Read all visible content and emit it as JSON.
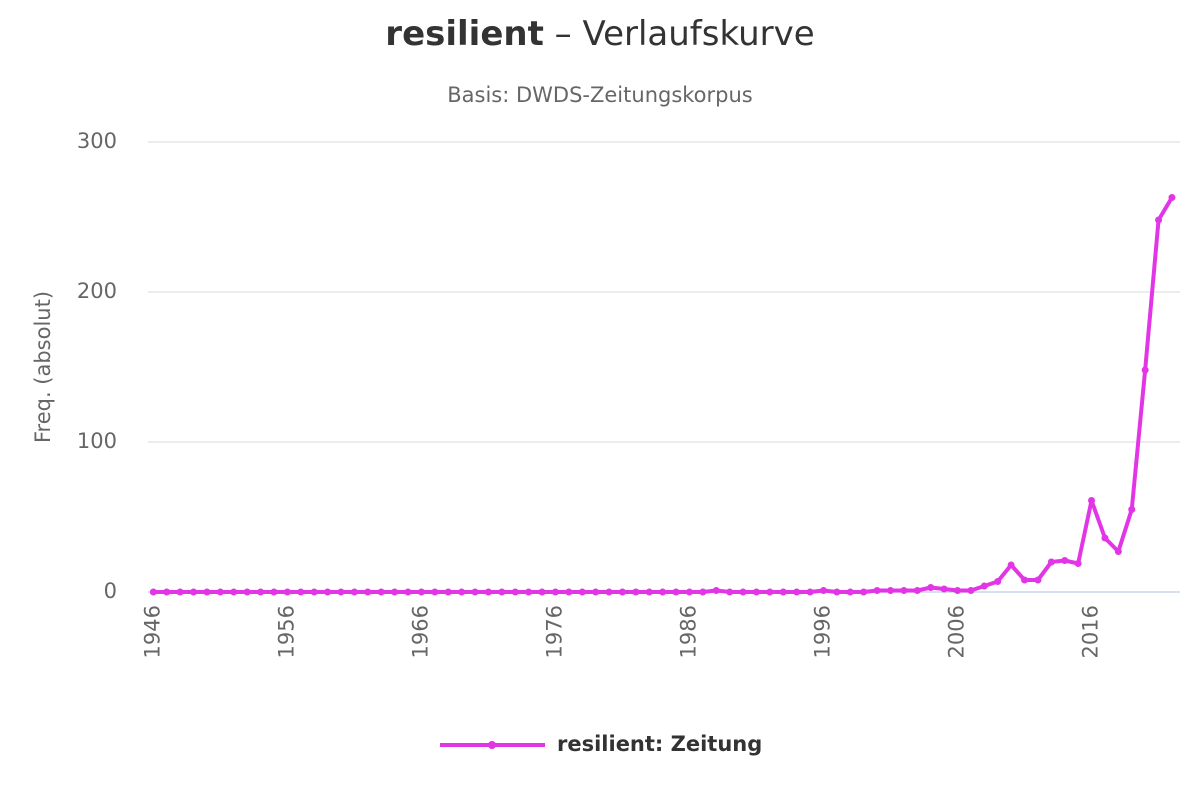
{
  "chart_data": {
    "type": "line",
    "title_keyword": "resilient",
    "title": "– Verlaufskurve",
    "subtitle": "Basis: DWDS-Zeitungskorpus",
    "y_label": "Freq. (absolut)",
    "x": [
      1946,
      1947,
      1948,
      1949,
      1950,
      1951,
      1952,
      1953,
      1954,
      1955,
      1956,
      1957,
      1958,
      1959,
      1960,
      1961,
      1962,
      1963,
      1964,
      1965,
      1966,
      1967,
      1968,
      1969,
      1970,
      1971,
      1972,
      1973,
      1974,
      1975,
      1976,
      1977,
      1978,
      1979,
      1980,
      1981,
      1982,
      1983,
      1984,
      1985,
      1986,
      1987,
      1988,
      1989,
      1990,
      1991,
      1992,
      1993,
      1994,
      1995,
      1996,
      1997,
      1998,
      1999,
      2000,
      2001,
      2002,
      2003,
      2004,
      2005,
      2006,
      2007,
      2008,
      2009,
      2010,
      2011,
      2012,
      2013,
      2014,
      2015,
      2016,
      2017,
      2018,
      2019,
      2020,
      2021,
      2022
    ],
    "series": [
      {
        "name": "resilient: Zeitung",
        "color": "#e236e6",
        "values": [
          0,
          0,
          0,
          0,
          0,
          0,
          0,
          0,
          0,
          0,
          0,
          0,
          0,
          0,
          0,
          0,
          0,
          0,
          0,
          0,
          0,
          0,
          0,
          0,
          0,
          0,
          0,
          0,
          0,
          0,
          0,
          0,
          0,
          0,
          0,
          0,
          0,
          0,
          0,
          0,
          0,
          0,
          1,
          0,
          0,
          0,
          0,
          0,
          0,
          0,
          1,
          0,
          0,
          0,
          1,
          1,
          1,
          1,
          3,
          2,
          1,
          1,
          4,
          7,
          18,
          8,
          8,
          20,
          21,
          19,
          61,
          36,
          27,
          55,
          148,
          248,
          263
        ]
      }
    ],
    "xlim": [
      1945.6,
      2022.6
    ],
    "xticks": [
      1946,
      1956,
      1966,
      1976,
      1986,
      1996,
      2006,
      2016
    ],
    "ylim": [
      0,
      300
    ],
    "yticks": [
      0,
      100,
      200,
      300
    ],
    "grid": true,
    "legend": "bottom"
  }
}
